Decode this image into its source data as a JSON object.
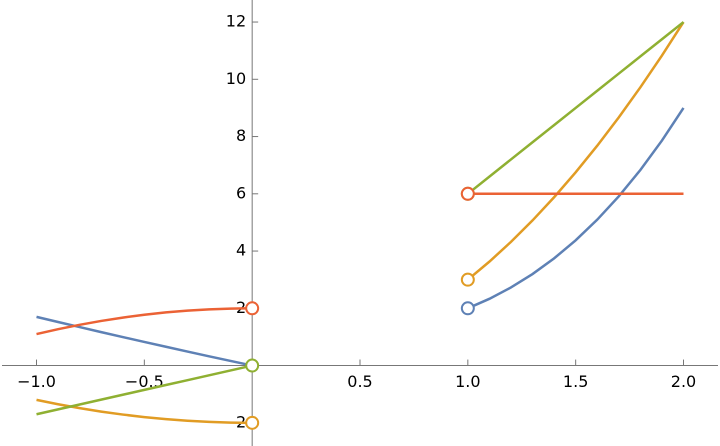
{
  "chart_data": {
    "type": "line",
    "x": [
      -1,
      -0.9,
      -0.8,
      -0.7,
      -0.6,
      -0.5,
      -0.4,
      -0.3,
      -0.2,
      -0.1,
      0,
      0.5,
      1,
      1.1,
      1.2,
      1.3,
      1.4,
      1.5,
      1.6,
      1.7,
      1.8,
      1.9,
      2
    ],
    "series": [
      {
        "color": "#5e81b5",
        "values": [
          1.7,
          1.521,
          1.344,
          1.169,
          0.996,
          0.825,
          0.656,
          0.489,
          0.324,
          0.161,
          0,
          null,
          2,
          2.331,
          2.728,
          3.197,
          3.744,
          4.375,
          5.096,
          5.913,
          6.832,
          7.859,
          9
        ]
      },
      {
        "color": "#e19c24",
        "values": [
          -1.2,
          -1.352,
          -1.488,
          -1.608,
          -1.712,
          -1.8,
          -1.872,
          -1.928,
          -1.968,
          -1.992,
          -2,
          null,
          3,
          3.63,
          4.32,
          5.07,
          5.88,
          6.75,
          7.68,
          8.67,
          9.72,
          10.83,
          12
        ]
      },
      {
        "color": "#8fb032",
        "values": [
          -1.7,
          -1.53,
          -1.36,
          -1.19,
          -1.02,
          -0.85,
          -0.68,
          -0.51,
          -0.34,
          -0.17,
          0,
          null,
          6,
          6.6,
          7.2,
          7.8,
          8.4,
          9,
          9.6,
          10.2,
          10.8,
          11.4,
          12
        ]
      },
      {
        "color": "#eb6235",
        "values": [
          1.1,
          1.271,
          1.424,
          1.559,
          1.676,
          1.775,
          1.856,
          1.919,
          1.964,
          1.991,
          2,
          null,
          6,
          6,
          6,
          6,
          6,
          6,
          6,
          6,
          6,
          6,
          6
        ]
      }
    ],
    "open_points": [
      {
        "x": 0,
        "y": 2,
        "color": "#eb6235"
      },
      {
        "x": 0,
        "y": -2,
        "color": "#e19c24"
      },
      {
        "x": 0,
        "y": 0,
        "color": "#8fb032"
      },
      {
        "x": 1,
        "y": 2,
        "color": "#5e81b5"
      },
      {
        "x": 1,
        "y": 3,
        "color": "#e19c24"
      },
      {
        "x": 1,
        "y": 6,
        "color": "#8fb032"
      },
      {
        "x": 1,
        "y": 6,
        "color": "#eb6235"
      }
    ],
    "xlim": [
      -1.16,
      2.16
    ],
    "ylim": [
      -2.81,
      12.77
    ],
    "xticks": [
      {
        "value": -1,
        "label": "−1.0"
      },
      {
        "value": -0.5,
        "label": "−0.5"
      },
      0.5,
      {
        "value": 1,
        "label": "1.0"
      },
      1.5,
      {
        "value": 2,
        "label": "2.0"
      }
    ],
    "yticks": [
      {
        "value": -2,
        "label": "−2"
      },
      2,
      4,
      6,
      8,
      10,
      12
    ]
  }
}
